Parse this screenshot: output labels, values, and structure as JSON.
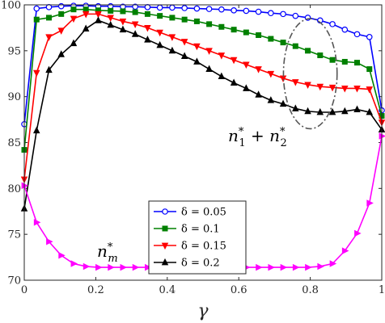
{
  "chart_data": {
    "type": "line",
    "title": "",
    "xlabel": "γ",
    "ylabel": "",
    "xlim": [
      0,
      1
    ],
    "ylim": [
      70,
      100
    ],
    "xticks": [
      "0",
      "0.2",
      "0.4",
      "0.6",
      "0.8",
      "1"
    ],
    "yticks": [
      "70",
      "75",
      "80",
      "85",
      "90",
      "95",
      "100"
    ],
    "grid": false,
    "legend_position": "lower-center",
    "x": [
      0,
      0.0345,
      0.069,
      0.1034,
      0.1379,
      0.1724,
      0.2069,
      0.2414,
      0.2759,
      0.3103,
      0.3448,
      0.3793,
      0.4138,
      0.4483,
      0.4828,
      0.5172,
      0.5517,
      0.5862,
      0.6207,
      0.6552,
      0.6897,
      0.7241,
      0.7586,
      0.7931,
      0.8276,
      0.8621,
      0.8966,
      0.931,
      0.9655,
      1.0
    ],
    "series": [
      {
        "name": "δ = 0.05",
        "color": "#0000ff",
        "marker": "circle",
        "values": [
          87.0,
          99.6,
          99.75,
          99.85,
          99.9,
          99.9,
          99.85,
          99.85,
          99.8,
          99.8,
          99.75,
          99.7,
          99.7,
          99.65,
          99.6,
          99.55,
          99.5,
          99.4,
          99.35,
          99.25,
          99.1,
          99.0,
          98.8,
          98.6,
          98.3,
          97.9,
          97.3,
          96.8,
          96.5,
          88.5
        ]
      },
      {
        "name": "δ = 0.1",
        "color": "#008000",
        "marker": "square",
        "values": [
          84.2,
          98.4,
          98.6,
          99.0,
          99.5,
          99.5,
          99.4,
          99.35,
          99.3,
          99.2,
          99.0,
          98.8,
          98.6,
          98.4,
          98.2,
          97.9,
          97.6,
          97.3,
          97.0,
          96.7,
          96.3,
          95.9,
          95.5,
          95.0,
          94.5,
          94.0,
          93.8,
          93.7,
          93.0,
          87.9
        ]
      },
      {
        "name": "δ = 0.15",
        "color": "#ff0000",
        "marker": "triangle-down",
        "values": [
          81.0,
          92.6,
          96.5,
          97.2,
          98.5,
          99.0,
          99.0,
          98.6,
          98.2,
          97.9,
          97.5,
          97.0,
          96.5,
          96.0,
          95.5,
          95.0,
          94.5,
          94.0,
          93.5,
          93.0,
          92.5,
          92.0,
          91.6,
          91.3,
          91.1,
          91.0,
          90.9,
          90.9,
          90.8,
          87.2
        ]
      },
      {
        "name": "δ = 0.2",
        "color": "#000000",
        "marker": "triangle-up",
        "values": [
          77.8,
          86.3,
          92.9,
          94.6,
          95.8,
          97.4,
          98.3,
          97.8,
          97.3,
          96.8,
          96.2,
          95.6,
          95.0,
          94.4,
          93.8,
          93.0,
          92.2,
          91.5,
          90.9,
          90.2,
          89.6,
          89.2,
          88.7,
          88.4,
          88.3,
          88.3,
          88.4,
          88.6,
          88.3,
          86.4
        ]
      },
      {
        "name": "",
        "color": "#ff00ff",
        "marker": "triangle-right",
        "values": [
          80.3,
          76.3,
          74.2,
          72.7,
          71.8,
          71.5,
          71.4,
          71.4,
          71.4,
          71.4,
          71.4,
          71.4,
          71.4,
          71.4,
          71.4,
          71.4,
          71.4,
          71.4,
          71.4,
          71.4,
          71.4,
          71.4,
          71.4,
          71.4,
          71.5,
          71.8,
          73.2,
          75.1,
          78.4,
          85.7
        ]
      }
    ],
    "annotations": {
      "sum_label_base": "n",
      "sum_label_sub1": "1",
      "sum_label_plus": "+",
      "sum_label_sub2": "2",
      "sum_label_sup": "*",
      "nm_label_base": "n",
      "nm_label_sub": "m",
      "nm_label_sup": "*",
      "ellipse_center": [
        0.8,
        92.5
      ],
      "ellipse_radii": [
        0.075,
        6.0
      ]
    }
  }
}
